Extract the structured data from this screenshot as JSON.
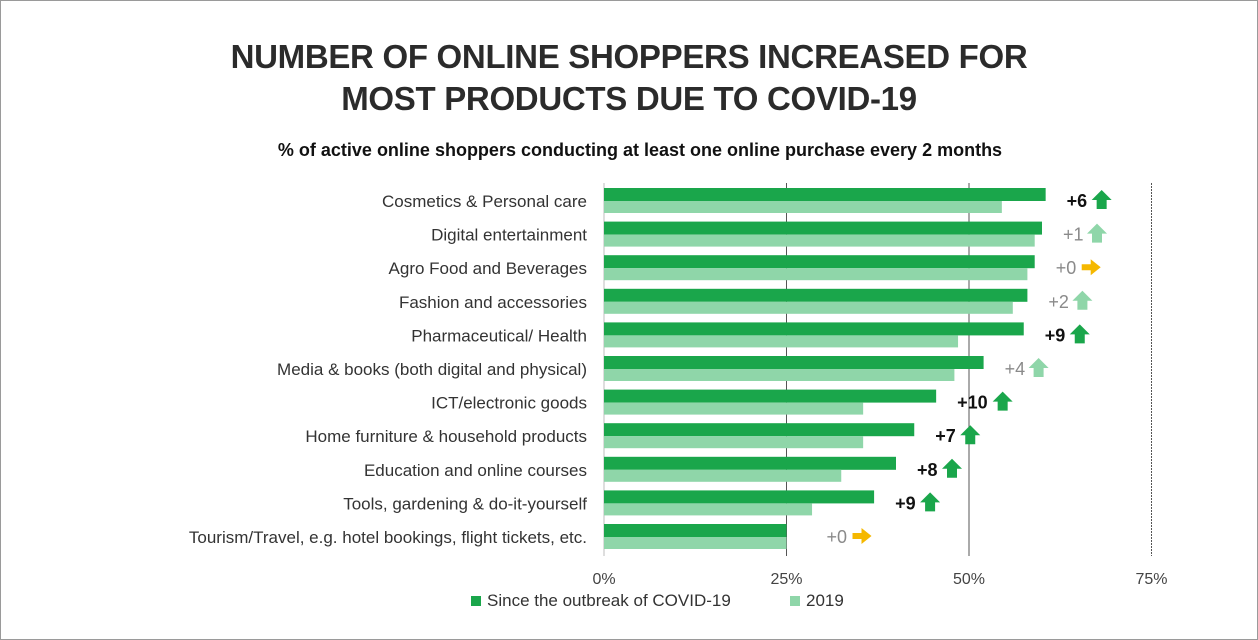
{
  "chart_data": {
    "type": "bar",
    "title": [
      "NUMBER OF ONLINE SHOPPERS INCREASED FOR",
      "MOST PRODUCTS DUE TO COVID-19"
    ],
    "subtitle": "% of active online shoppers conducting at least one online purchase every 2 months",
    "categories": [
      "Cosmetics & Personal care",
      "Digital entertainment",
      "Agro Food and Beverages",
      "Fashion and accessories",
      "Pharmaceutical/ Health",
      "Media & books (both digital and physical)",
      "ICT/electronic goods",
      "Home furniture & household products",
      "Education and online courses",
      "Tools, gardening & do-it-yourself",
      "Tourism/Travel, e.g. hotel bookings, flight tickets, etc."
    ],
    "series": [
      {
        "name": "Since the outbreak of COVID-19",
        "color": "#1aa64b",
        "values": [
          60.5,
          60,
          59,
          58,
          57.5,
          52,
          45.5,
          42.5,
          40,
          37,
          25
        ]
      },
      {
        "name": "2019",
        "color": "#8fd6a9",
        "values": [
          54.5,
          59,
          58,
          56,
          48.5,
          48,
          35.5,
          35.5,
          32.5,
          28.5,
          25
        ]
      }
    ],
    "deltas": [
      {
        "label": "+6",
        "kind": "up-strong"
      },
      {
        "label": "+1",
        "kind": "up-light"
      },
      {
        "label": "+0",
        "kind": "flat"
      },
      {
        "label": "+2",
        "kind": "up-light"
      },
      {
        "label": "+9",
        "kind": "up-strong"
      },
      {
        "label": "+4",
        "kind": "up-light"
      },
      {
        "label": "+10",
        "kind": "up-strong"
      },
      {
        "label": "+7",
        "kind": "up-strong"
      },
      {
        "label": "+8",
        "kind": "up-strong"
      },
      {
        "label": "+9",
        "kind": "up-strong"
      },
      {
        "label": "+0",
        "kind": "flat"
      }
    ],
    "xticks": [
      "0%",
      "25%",
      "50%",
      "75%"
    ],
    "xtick_values": [
      0,
      25,
      50,
      75
    ],
    "xlim": [
      0,
      75
    ],
    "grid": true,
    "legend_placement": "bottom-center",
    "colors": {
      "strong_arrow": "#1aa64b",
      "light_arrow": "#8fd6a9",
      "flat_arrow": "#f5b800",
      "strong_text": "#111111",
      "light_text": "#8a8a8a"
    }
  }
}
